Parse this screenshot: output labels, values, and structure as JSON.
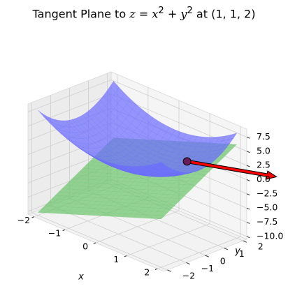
{
  "chart_data": {
    "type": "surface3d",
    "title": {
      "prefix": "Tangent Plane to ",
      "formula_z": "z",
      "formula_eq": " = ",
      "formula_x": "x",
      "formula_x_exp": "2",
      "formula_plus": " + ",
      "formula_y": "y",
      "formula_y_exp": "2",
      "suffix": " at (1, 1, 2)"
    },
    "xlabel": "x",
    "ylabel": "y",
    "zlabel": "",
    "xlim": [
      -2.2,
      2.2
    ],
    "ylim": [
      -2.2,
      2.2
    ],
    "zlim": [
      -10.5,
      8.9
    ],
    "x_ticks": [
      "−2",
      "−1",
      "0",
      "1",
      "2"
    ],
    "y_ticks": [
      "−2",
      "−1",
      "0",
      "1",
      "2"
    ],
    "z_ticks": [
      "−10.0",
      "−7.5",
      "−5.0",
      "−2.5",
      "0.0",
      "2.5",
      "5.0",
      "7.5"
    ],
    "grid": true,
    "surfaces": [
      {
        "name": "",
        "equation": "z = x^2 + y^2",
        "color": "#6b6bff",
        "alpha": 0.7
      },
      {
        "name": "",
        "equation": "z = 2x + 2y - 2",
        "color": "#6cc46c",
        "alpha": 0.7
      }
    ],
    "point": {
      "x": 1,
      "y": 1,
      "z": 2,
      "color": "#6a1b5c"
    },
    "normal_vector": {
      "from": [
        1,
        1,
        2
      ],
      "direction": [
        2,
        2,
        -1
      ],
      "color": "#ff0000"
    }
  }
}
